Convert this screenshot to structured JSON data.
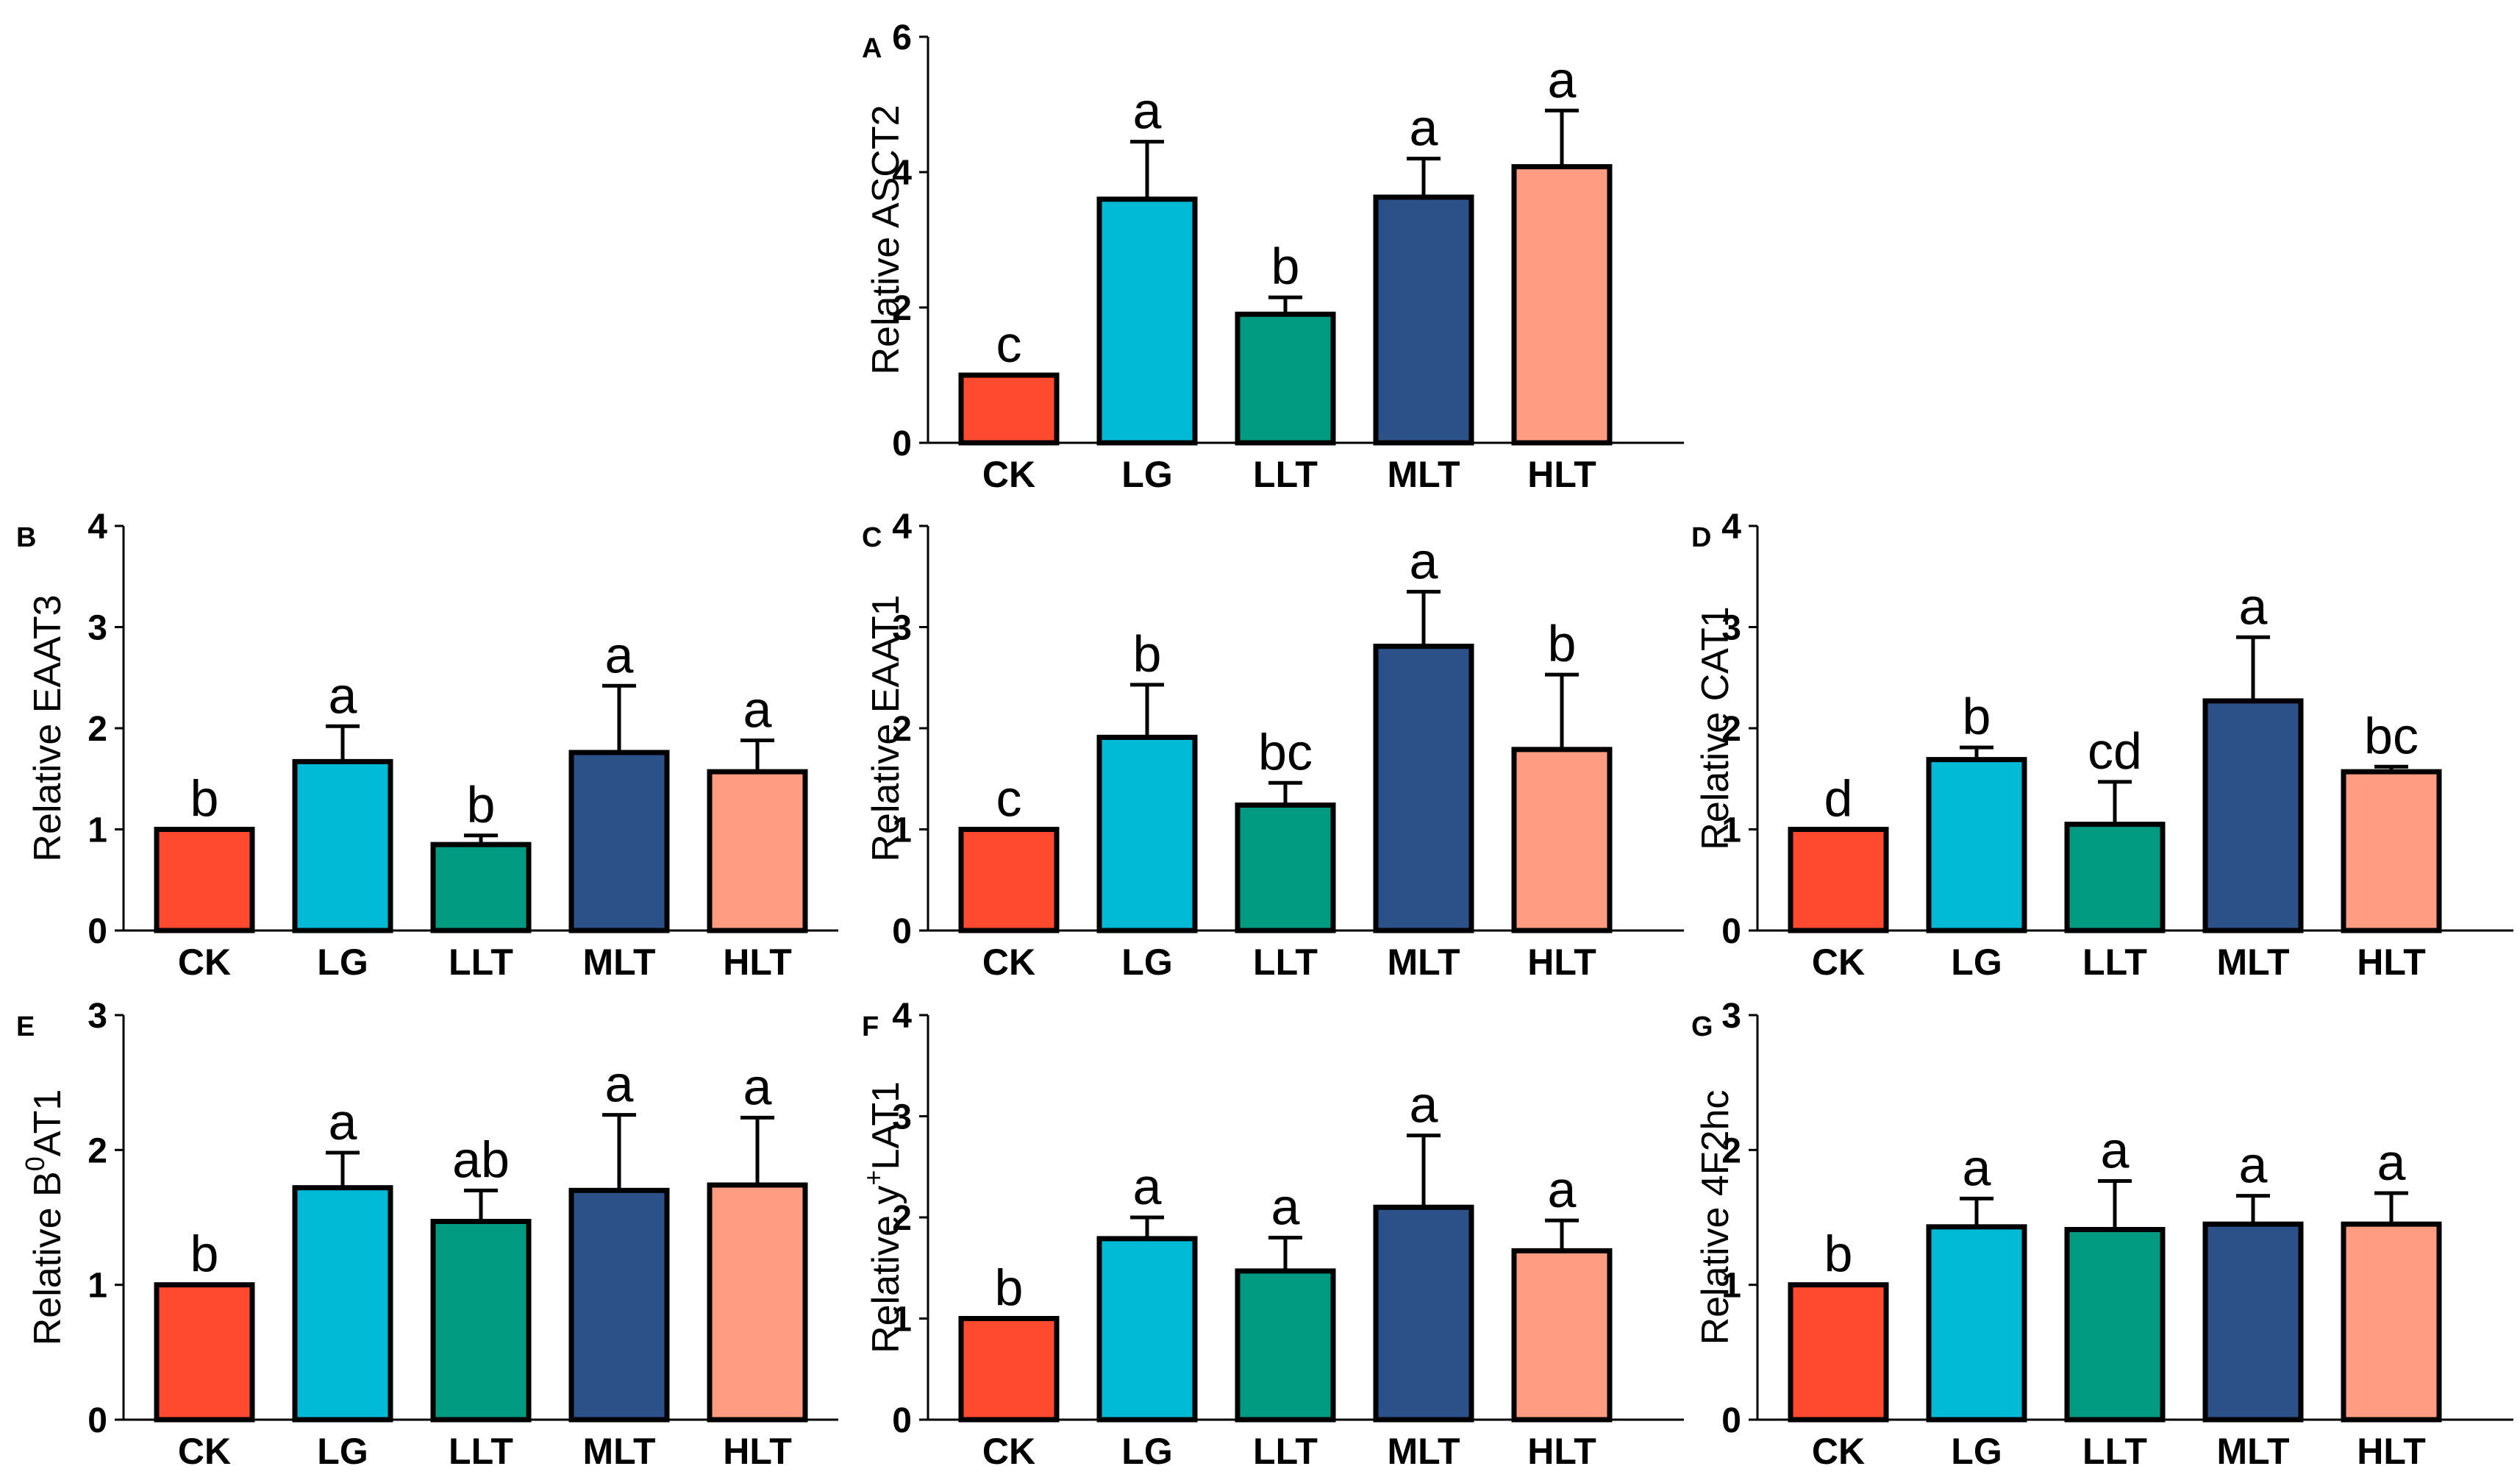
{
  "figure": {
    "colors": [
      "#FF4A30",
      "#00BAD6",
      "#009B80",
      "#2B5188",
      "#FF9C82"
    ]
  },
  "chart_data": [
    {
      "id": "A",
      "panel": "A",
      "type": "bar",
      "ylabel": "Relative ASCT2",
      "categories": [
        "CK",
        "LG",
        "LLT",
        "MLT",
        "HLT"
      ],
      "values": [
        1.0,
        3.6,
        1.9,
        3.63,
        4.08
      ],
      "errors": [
        0,
        0.85,
        0.25,
        0.57,
        0.83
      ],
      "letters": [
        "c",
        "a",
        "b",
        "a",
        "a"
      ],
      "ylim": [
        0,
        6
      ],
      "yticks": [
        "0",
        "2",
        "4",
        "6"
      ]
    },
    {
      "id": "B",
      "panel": "B",
      "type": "bar",
      "ylabel": "Relative EAAT3",
      "categories": [
        "CK",
        "LG",
        "LLT",
        "MLT",
        "HLT"
      ],
      "values": [
        1.0,
        1.67,
        0.85,
        1.76,
        1.57
      ],
      "errors": [
        0,
        0.35,
        0.09,
        0.66,
        0.31
      ],
      "letters": [
        "b",
        "a",
        "b",
        "a",
        "a"
      ],
      "ylim": [
        0,
        4
      ],
      "yticks": [
        "0",
        "1",
        "2",
        "3",
        "4"
      ]
    },
    {
      "id": "C",
      "panel": "C",
      "type": "bar",
      "ylabel": "Relative EAAT1",
      "categories": [
        "CK",
        "LG",
        "LLT",
        "MLT",
        "HLT"
      ],
      "values": [
        1.0,
        1.91,
        1.24,
        2.81,
        1.79
      ],
      "errors": [
        0,
        0.52,
        0.22,
        0.54,
        0.74
      ],
      "letters": [
        "c",
        "b",
        "bc",
        "a",
        "b"
      ],
      "ylim": [
        0,
        4
      ],
      "yticks": [
        "0",
        "1",
        "2",
        "3",
        "4"
      ]
    },
    {
      "id": "D",
      "panel": "D",
      "type": "bar",
      "ylabel": "Relative CAT1",
      "categories": [
        "CK",
        "LG",
        "LLT",
        "MLT",
        "HLT"
      ],
      "values": [
        1.0,
        1.69,
        1.05,
        2.27,
        1.57
      ],
      "errors": [
        0,
        0.12,
        0.42,
        0.63,
        0.05
      ],
      "letters": [
        "d",
        "b",
        "cd",
        "a",
        "bc"
      ],
      "ylim": [
        0,
        4
      ],
      "yticks": [
        "0",
        "1",
        "2",
        "3",
        "4"
      ]
    },
    {
      "id": "E",
      "panel": "E",
      "type": "bar",
      "ylabel": "Relative B",
      "ylabel_sup": "0",
      "ylabel_tail": "AT1",
      "categories": [
        "CK",
        "LG",
        "LLT",
        "MLT",
        "HLT"
      ],
      "values": [
        1.0,
        1.72,
        1.47,
        1.7,
        1.74
      ],
      "errors": [
        0,
        0.26,
        0.23,
        0.56,
        0.5
      ],
      "letters": [
        "b",
        "a",
        "ab",
        "a",
        "a"
      ],
      "ylim": [
        0,
        3
      ],
      "yticks": [
        "0",
        "1",
        "2",
        "3"
      ]
    },
    {
      "id": "F",
      "panel": "F",
      "type": "bar",
      "ylabel": "Relative y",
      "ylabel_sup": "+",
      "ylabel_tail": "LAT1",
      "categories": [
        "CK",
        "LG",
        "LLT",
        "MLT",
        "HLT"
      ],
      "values": [
        1.0,
        1.79,
        1.47,
        2.1,
        1.67
      ],
      "errors": [
        0,
        0.21,
        0.33,
        0.71,
        0.3
      ],
      "letters": [
        "b",
        "a",
        "a",
        "a",
        "a"
      ],
      "ylim": [
        0,
        4
      ],
      "yticks": [
        "0",
        "1",
        "2",
        "3",
        "4"
      ]
    },
    {
      "id": "G",
      "panel": "G",
      "type": "bar",
      "ylabel": "Relative 4F2hc",
      "categories": [
        "CK",
        "LG",
        "LLT",
        "MLT",
        "HLT"
      ],
      "values": [
        1.0,
        1.43,
        1.41,
        1.45,
        1.45
      ],
      "errors": [
        0,
        0.21,
        0.36,
        0.21,
        0.23
      ],
      "letters": [
        "b",
        "a",
        "a",
        "a",
        "a"
      ],
      "ylim": [
        0,
        3
      ],
      "yticks": [
        "0",
        "1",
        "2",
        "3"
      ]
    }
  ]
}
